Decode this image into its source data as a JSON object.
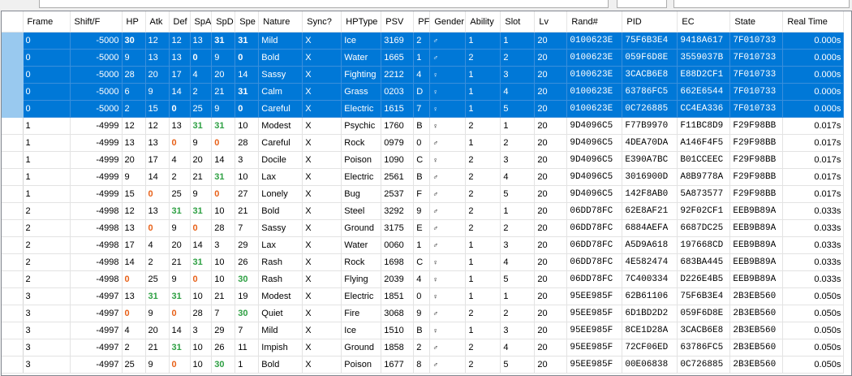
{
  "columns": [
    "Frame",
    "Shift/F",
    "HP",
    "Atk",
    "Def",
    "SpA",
    "SpD",
    "Spe",
    "Nature",
    "Sync?",
    "HPType",
    "PSV",
    "PF",
    "Gender",
    "Ability",
    "Slot",
    "Lv",
    "Rand#",
    "PID",
    "EC",
    "State",
    "Real Time"
  ],
  "gender_glyphs": {
    "M": "♂",
    "F": "♀"
  },
  "rows": [
    {
      "sel": true,
      "frame": "0",
      "shift": "-5000",
      "ivs": [
        "30",
        "12",
        "12",
        "13",
        "31",
        "31"
      ],
      "fx": [
        "b",
        "",
        "",
        "",
        "b",
        "b"
      ],
      "nature": "Mild",
      "sync": "X",
      "hptype": "Ice",
      "psv": "3169",
      "pf": "2",
      "gender": "M",
      "ability": "1",
      "slot": "1",
      "lv": "20",
      "rand": "0100623E",
      "pid": "75F6B3E4",
      "ec": "9418A617",
      "state": "7F010733",
      "time": "0.000s"
    },
    {
      "sel": true,
      "frame": "0",
      "shift": "-5000",
      "ivs": [
        "9",
        "13",
        "13",
        "0",
        "9",
        "0"
      ],
      "fx": [
        "",
        "",
        "",
        "b",
        "",
        "b"
      ],
      "nature": "Bold",
      "sync": "X",
      "hptype": "Water",
      "psv": "1665",
      "pf": "1",
      "gender": "M",
      "ability": "2",
      "slot": "2",
      "lv": "20",
      "rand": "0100623E",
      "pid": "059F6D8E",
      "ec": "3559037B",
      "state": "7F010733",
      "time": "0.000s"
    },
    {
      "sel": true,
      "frame": "0",
      "shift": "-5000",
      "ivs": [
        "28",
        "20",
        "17",
        "4",
        "20",
        "14"
      ],
      "fx": [
        "",
        "",
        "",
        "",
        "",
        ""
      ],
      "nature": "Sassy",
      "sync": "X",
      "hptype": "Fighting",
      "psv": "2212",
      "pf": "4",
      "gender": "F",
      "ability": "1",
      "slot": "3",
      "lv": "20",
      "rand": "0100623E",
      "pid": "3CACB6E8",
      "ec": "E88D2CF1",
      "state": "7F010733",
      "time": "0.000s"
    },
    {
      "sel": true,
      "frame": "0",
      "shift": "-5000",
      "ivs": [
        "6",
        "9",
        "14",
        "2",
        "21",
        "31"
      ],
      "fx": [
        "",
        "",
        "",
        "",
        "",
        "b"
      ],
      "nature": "Calm",
      "sync": "X",
      "hptype": "Grass",
      "psv": "0203",
      "pf": "D",
      "gender": "F",
      "ability": "1",
      "slot": "4",
      "lv": "20",
      "rand": "0100623E",
      "pid": "63786FC5",
      "ec": "662E6544",
      "state": "7F010733",
      "time": "0.000s"
    },
    {
      "sel": true,
      "frame": "0",
      "shift": "-5000",
      "ivs": [
        "2",
        "15",
        "0",
        "25",
        "9",
        "0"
      ],
      "fx": [
        "",
        "",
        "b",
        "",
        "",
        "b"
      ],
      "nature": "Careful",
      "sync": "X",
      "hptype": "Electric",
      "psv": "1615",
      "pf": "7",
      "gender": "F",
      "ability": "1",
      "slot": "5",
      "lv": "20",
      "rand": "0100623E",
      "pid": "0C726885",
      "ec": "CC4EA336",
      "state": "7F010733",
      "time": "0.000s"
    },
    {
      "sel": false,
      "frame": "1",
      "shift": "-4999",
      "ivs": [
        "12",
        "12",
        "13",
        "31",
        "31",
        "10"
      ],
      "fx": [
        "",
        "",
        "",
        "g",
        "g",
        ""
      ],
      "nature": "Modest",
      "sync": "X",
      "hptype": "Psychic",
      "psv": "1760",
      "pf": "B",
      "gender": "F",
      "ability": "2",
      "slot": "1",
      "lv": "20",
      "rand": "9D4096C5",
      "pid": "F77B9970",
      "ec": "F11BC8D9",
      "state": "F29F98BB",
      "time": "0.017s"
    },
    {
      "sel": false,
      "frame": "1",
      "shift": "-4999",
      "ivs": [
        "13",
        "13",
        "0",
        "9",
        "0",
        "28"
      ],
      "fx": [
        "",
        "",
        "o",
        "",
        "o",
        ""
      ],
      "nature": "Careful",
      "sync": "X",
      "hptype": "Rock",
      "psv": "0979",
      "pf": "0",
      "gender": "M",
      "ability": "1",
      "slot": "2",
      "lv": "20",
      "rand": "9D4096C5",
      "pid": "4DEA70DA",
      "ec": "A146F4F5",
      "state": "F29F98BB",
      "time": "0.017s"
    },
    {
      "sel": false,
      "frame": "1",
      "shift": "-4999",
      "ivs": [
        "20",
        "17",
        "4",
        "20",
        "14",
        "3"
      ],
      "fx": [
        "",
        "",
        "",
        "",
        "",
        ""
      ],
      "nature": "Docile",
      "sync": "X",
      "hptype": "Poison",
      "psv": "1090",
      "pf": "C",
      "gender": "F",
      "ability": "2",
      "slot": "3",
      "lv": "20",
      "rand": "9D4096C5",
      "pid": "E390A7BC",
      "ec": "B01CCEEC",
      "state": "F29F98BB",
      "time": "0.017s"
    },
    {
      "sel": false,
      "frame": "1",
      "shift": "-4999",
      "ivs": [
        "9",
        "14",
        "2",
        "21",
        "31",
        "10"
      ],
      "fx": [
        "",
        "",
        "",
        "",
        "g",
        ""
      ],
      "nature": "Lax",
      "sync": "X",
      "hptype": "Electric",
      "psv": "2561",
      "pf": "B",
      "gender": "M",
      "ability": "2",
      "slot": "4",
      "lv": "20",
      "rand": "9D4096C5",
      "pid": "3016900D",
      "ec": "A8B9778A",
      "state": "F29F98BB",
      "time": "0.017s"
    },
    {
      "sel": false,
      "frame": "1",
      "shift": "-4999",
      "ivs": [
        "15",
        "0",
        "25",
        "9",
        "0",
        "27"
      ],
      "fx": [
        "",
        "o",
        "",
        "",
        "o",
        ""
      ],
      "nature": "Lonely",
      "sync": "X",
      "hptype": "Bug",
      "psv": "2537",
      "pf": "F",
      "gender": "M",
      "ability": "2",
      "slot": "5",
      "lv": "20",
      "rand": "9D4096C5",
      "pid": "142F8AB0",
      "ec": "5A873577",
      "state": "F29F98BB",
      "time": "0.017s"
    },
    {
      "sel": false,
      "frame": "2",
      "shift": "-4998",
      "ivs": [
        "12",
        "13",
        "31",
        "31",
        "10",
        "21"
      ],
      "fx": [
        "",
        "",
        "g",
        "g",
        "",
        ""
      ],
      "nature": "Bold",
      "sync": "X",
      "hptype": "Steel",
      "psv": "3292",
      "pf": "9",
      "gender": "M",
      "ability": "2",
      "slot": "1",
      "lv": "20",
      "rand": "06DD78FC",
      "pid": "62E8AF21",
      "ec": "92F02CF1",
      "state": "EEB9B89A",
      "time": "0.033s"
    },
    {
      "sel": false,
      "frame": "2",
      "shift": "-4998",
      "ivs": [
        "13",
        "0",
        "9",
        "0",
        "28",
        "7"
      ],
      "fx": [
        "",
        "o",
        "",
        "o",
        "",
        ""
      ],
      "nature": "Sassy",
      "sync": "X",
      "hptype": "Ground",
      "psv": "3175",
      "pf": "E",
      "gender": "M",
      "ability": "2",
      "slot": "2",
      "lv": "20",
      "rand": "06DD78FC",
      "pid": "6884AEFA",
      "ec": "6687DC25",
      "state": "EEB9B89A",
      "time": "0.033s"
    },
    {
      "sel": false,
      "frame": "2",
      "shift": "-4998",
      "ivs": [
        "17",
        "4",
        "20",
        "14",
        "3",
        "29"
      ],
      "fx": [
        "",
        "",
        "",
        "",
        "",
        ""
      ],
      "nature": "Lax",
      "sync": "X",
      "hptype": "Water",
      "psv": "0060",
      "pf": "1",
      "gender": "M",
      "ability": "1",
      "slot": "3",
      "lv": "20",
      "rand": "06DD78FC",
      "pid": "A5D9A618",
      "ec": "197668CD",
      "state": "EEB9B89A",
      "time": "0.033s"
    },
    {
      "sel": false,
      "frame": "2",
      "shift": "-4998",
      "ivs": [
        "14",
        "2",
        "21",
        "31",
        "10",
        "26"
      ],
      "fx": [
        "",
        "",
        "",
        "g",
        "",
        ""
      ],
      "nature": "Rash",
      "sync": "X",
      "hptype": "Rock",
      "psv": "1698",
      "pf": "C",
      "gender": "F",
      "ability": "1",
      "slot": "4",
      "lv": "20",
      "rand": "06DD78FC",
      "pid": "4E582474",
      "ec": "683BA445",
      "state": "EEB9B89A",
      "time": "0.033s"
    },
    {
      "sel": false,
      "frame": "2",
      "shift": "-4998",
      "ivs": [
        "0",
        "25",
        "9",
        "0",
        "10",
        "30"
      ],
      "fx": [
        "o",
        "",
        "",
        "o",
        "",
        "g"
      ],
      "nature": "Rash",
      "sync": "X",
      "hptype": "Flying",
      "psv": "2039",
      "pf": "4",
      "gender": "F",
      "ability": "1",
      "slot": "5",
      "lv": "20",
      "rand": "06DD78FC",
      "pid": "7C400334",
      "ec": "D226E4B5",
      "state": "EEB9B89A",
      "time": "0.033s"
    },
    {
      "sel": false,
      "frame": "3",
      "shift": "-4997",
      "ivs": [
        "13",
        "31",
        "31",
        "10",
        "21",
        "19"
      ],
      "fx": [
        "",
        "g",
        "g",
        "",
        "",
        ""
      ],
      "nature": "Modest",
      "sync": "X",
      "hptype": "Electric",
      "psv": "1851",
      "pf": "0",
      "gender": "F",
      "ability": "1",
      "slot": "1",
      "lv": "20",
      "rand": "95EE985F",
      "pid": "62B61106",
      "ec": "75F6B3E4",
      "state": "2B3EB560",
      "time": "0.050s"
    },
    {
      "sel": false,
      "frame": "3",
      "shift": "-4997",
      "ivs": [
        "0",
        "9",
        "0",
        "28",
        "7",
        "30"
      ],
      "fx": [
        "o",
        "",
        "o",
        "",
        "",
        "g"
      ],
      "nature": "Quiet",
      "sync": "X",
      "hptype": "Fire",
      "psv": "3068",
      "pf": "9",
      "gender": "M",
      "ability": "2",
      "slot": "2",
      "lv": "20",
      "rand": "95EE985F",
      "pid": "6D1BD2D2",
      "ec": "059F6D8E",
      "state": "2B3EB560",
      "time": "0.050s"
    },
    {
      "sel": false,
      "frame": "3",
      "shift": "-4997",
      "ivs": [
        "4",
        "20",
        "14",
        "3",
        "29",
        "7"
      ],
      "fx": [
        "",
        "",
        "",
        "",
        "",
        ""
      ],
      "nature": "Mild",
      "sync": "X",
      "hptype": "Ice",
      "psv": "1510",
      "pf": "B",
      "gender": "F",
      "ability": "1",
      "slot": "3",
      "lv": "20",
      "rand": "95EE985F",
      "pid": "8CE1D28A",
      "ec": "3CACB6E8",
      "state": "2B3EB560",
      "time": "0.050s"
    },
    {
      "sel": false,
      "frame": "3",
      "shift": "-4997",
      "ivs": [
        "2",
        "21",
        "31",
        "10",
        "26",
        "11"
      ],
      "fx": [
        "",
        "",
        "g",
        "",
        "",
        ""
      ],
      "nature": "Impish",
      "sync": "X",
      "hptype": "Ground",
      "psv": "1858",
      "pf": "2",
      "gender": "M",
      "ability": "2",
      "slot": "4",
      "lv": "20",
      "rand": "95EE985F",
      "pid": "72CF06ED",
      "ec": "63786FC5",
      "state": "2B3EB560",
      "time": "0.050s"
    },
    {
      "sel": false,
      "frame": "3",
      "shift": "-4997",
      "ivs": [
        "25",
        "9",
        "0",
        "10",
        "30",
        "1"
      ],
      "fx": [
        "",
        "",
        "o",
        "",
        "g",
        ""
      ],
      "nature": "Bold",
      "sync": "X",
      "hptype": "Poison",
      "psv": "1677",
      "pf": "8",
      "gender": "M",
      "ability": "2",
      "slot": "5",
      "lv": "20",
      "rand": "95EE985F",
      "pid": "00E06838",
      "ec": "0C726885",
      "state": "2B3EB560",
      "time": "0.050s"
    }
  ]
}
